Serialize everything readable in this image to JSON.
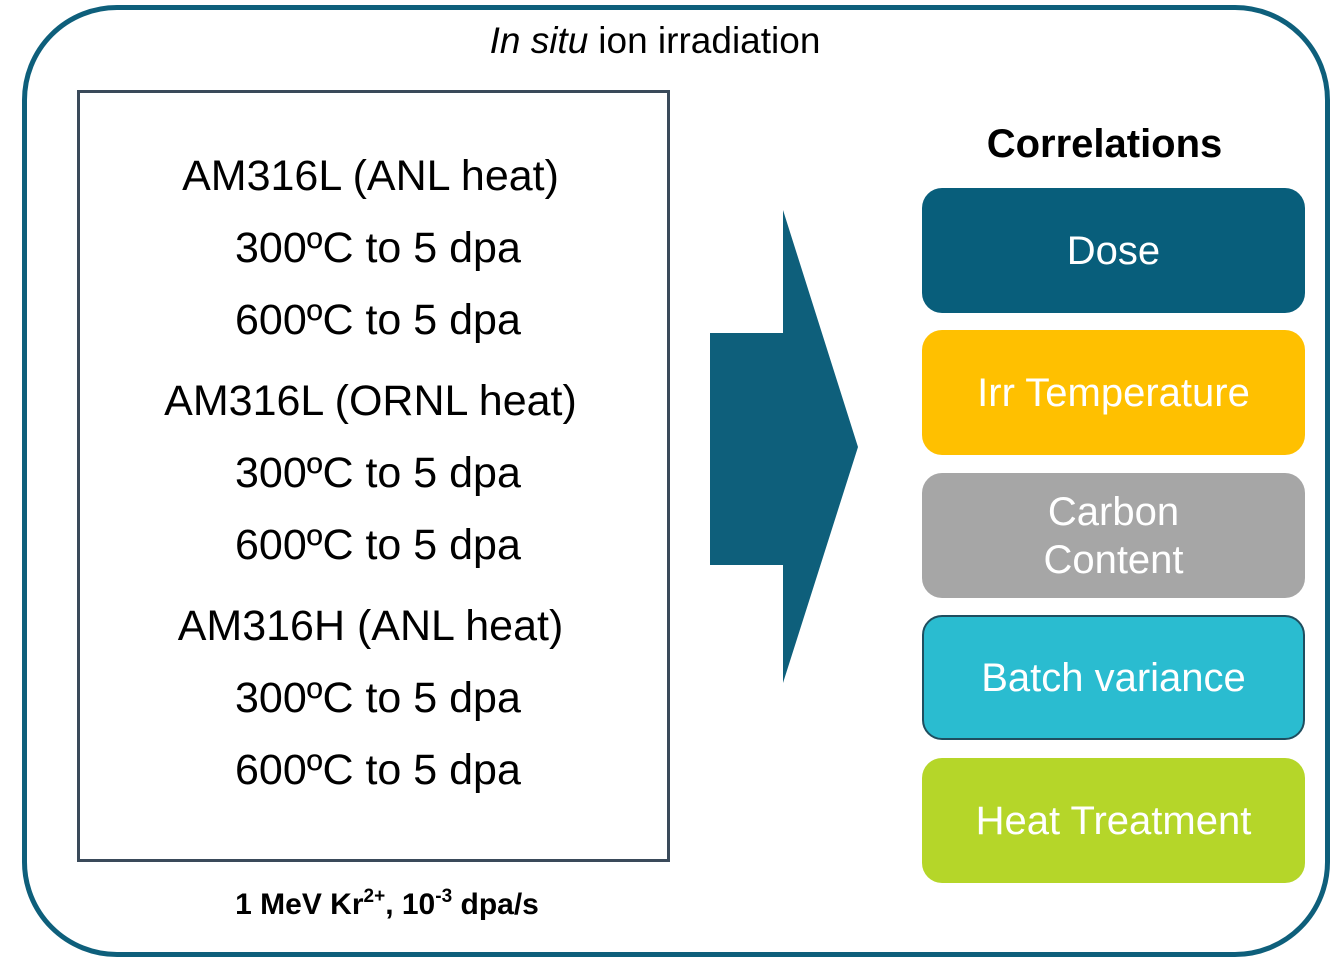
{
  "title": {
    "italic": "In situ",
    "rest": "ion irradiation"
  },
  "samples": [
    {
      "heading": "AM316L (ANL heat)",
      "conditions": [
        "300ºC to 5 dpa",
        "600ºC to 5 dpa"
      ]
    },
    {
      "heading": "AM316L (ORNL heat)",
      "conditions": [
        "300ºC to 5 dpa",
        "600ºC to 5 dpa"
      ]
    },
    {
      "heading": "AM316H (ANL heat)",
      "conditions": [
        "300ºC to 5 dpa",
        "600ºC to 5 dpa"
      ]
    }
  ],
  "footnote": {
    "parts": [
      "1 MeV Kr",
      "2+",
      ", 10",
      "-3",
      " dpa/s"
    ]
  },
  "correlations": {
    "title": "Correlations",
    "items": [
      {
        "label": "Dose",
        "color": "#085e7b"
      },
      {
        "label": "Irr Temperature",
        "color": "#ffc000"
      },
      {
        "label": "Carbon Content",
        "color": "#a6a6a6"
      },
      {
        "label": "Batch variance",
        "color": "#2abcd0"
      },
      {
        "label": "Heat Treatment",
        "color": "#b5d629"
      }
    ]
  }
}
